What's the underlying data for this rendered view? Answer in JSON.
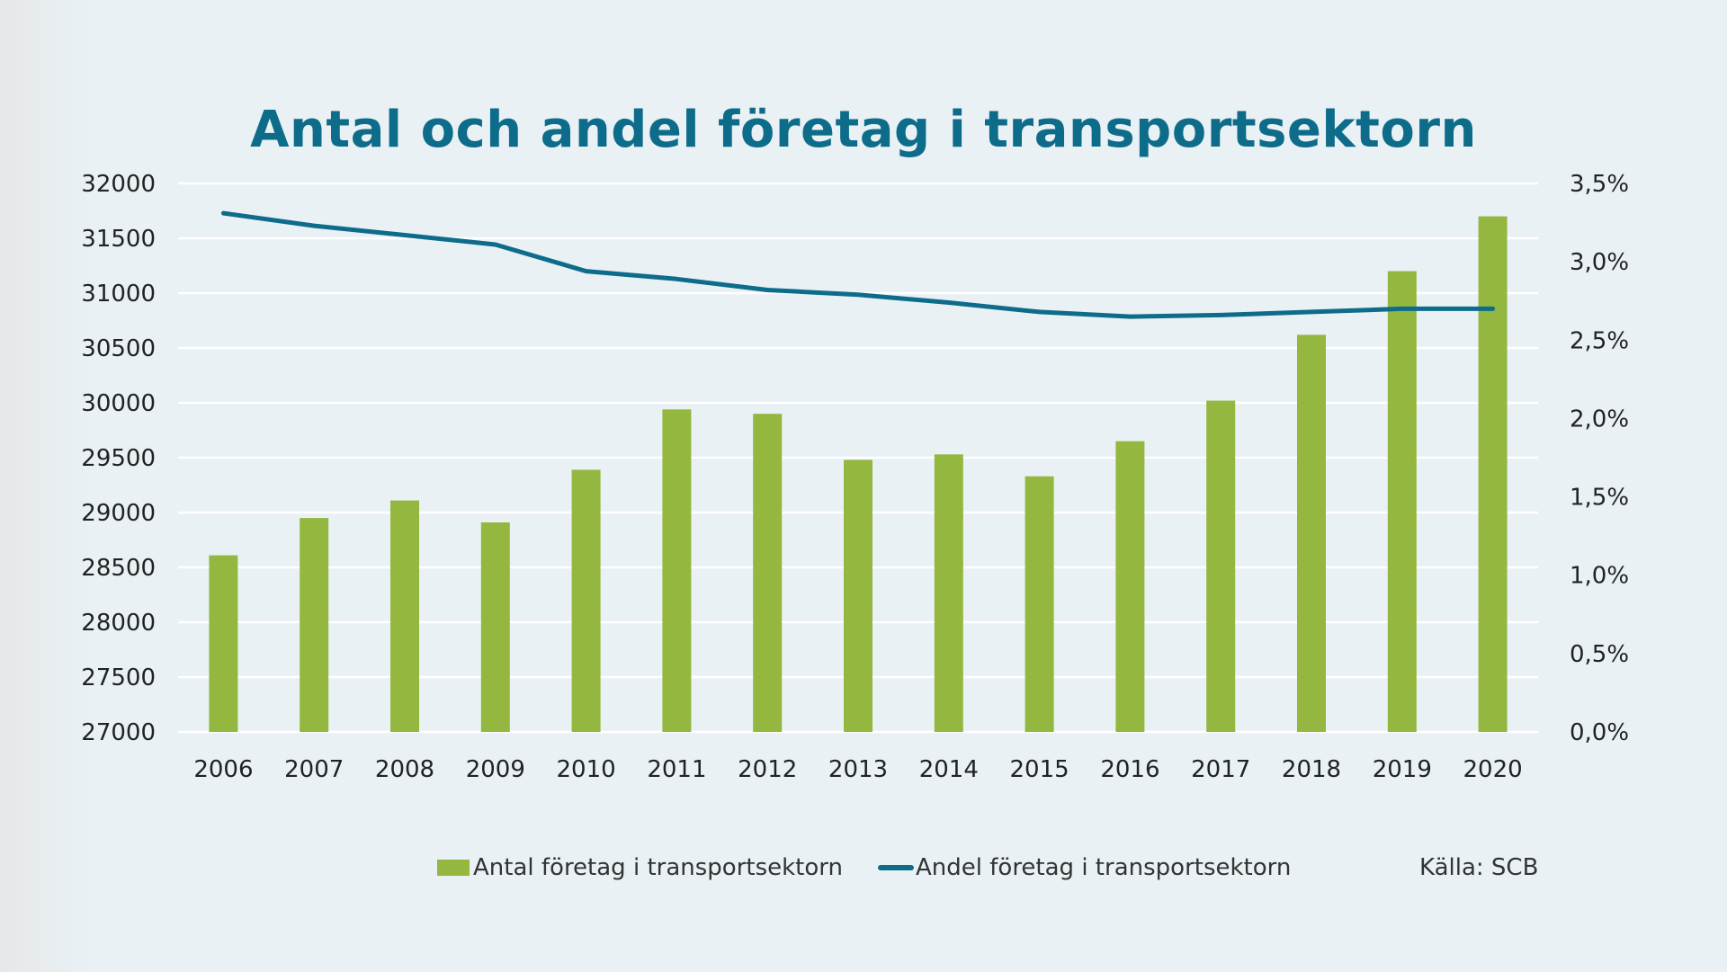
{
  "colors": {
    "title": "#0e6c8b",
    "bar": "#93b73f",
    "line": "#0e6c8b",
    "grid": "#ffffff",
    "background": "#e9f1f4"
  },
  "chart_data": {
    "type": "bar",
    "title": "Antal och andel företag i transportsektorn",
    "categories": [
      "2006",
      "2007",
      "2008",
      "2009",
      "2010",
      "2011",
      "2012",
      "2013",
      "2014",
      "2015",
      "2016",
      "2017",
      "2018",
      "2019",
      "2020"
    ],
    "series": [
      {
        "name": "Antal företag i transportsektorn",
        "type": "bar",
        "axis": "left",
        "values": [
          28610,
          28950,
          29110,
          28910,
          29390,
          29940,
          29900,
          29480,
          29530,
          29330,
          29650,
          30020,
          30620,
          31200,
          31700
        ]
      },
      {
        "name": "Andel företag i transportsektorn",
        "type": "line",
        "axis": "right",
        "values": [
          3.31,
          3.23,
          3.17,
          3.11,
          2.94,
          2.89,
          2.82,
          2.79,
          2.74,
          2.68,
          2.65,
          2.66,
          2.68,
          2.7,
          2.7
        ]
      }
    ],
    "y_left": {
      "min": 27000,
      "max": 32000,
      "step": 500,
      "ticks": [
        "27000",
        "27500",
        "28000",
        "28500",
        "29000",
        "29500",
        "30000",
        "30500",
        "31000",
        "31500",
        "32000"
      ]
    },
    "y_right": {
      "min": 0,
      "max": 3.5,
      "step": 0.5,
      "ticks": [
        "0,0%",
        "0,5%",
        "1,0%",
        "1,5%",
        "2,0%",
        "2,5%",
        "3,0%",
        "3,5%"
      ]
    },
    "grid": true,
    "legend_position": "bottom",
    "source": "Källa: SCB"
  }
}
